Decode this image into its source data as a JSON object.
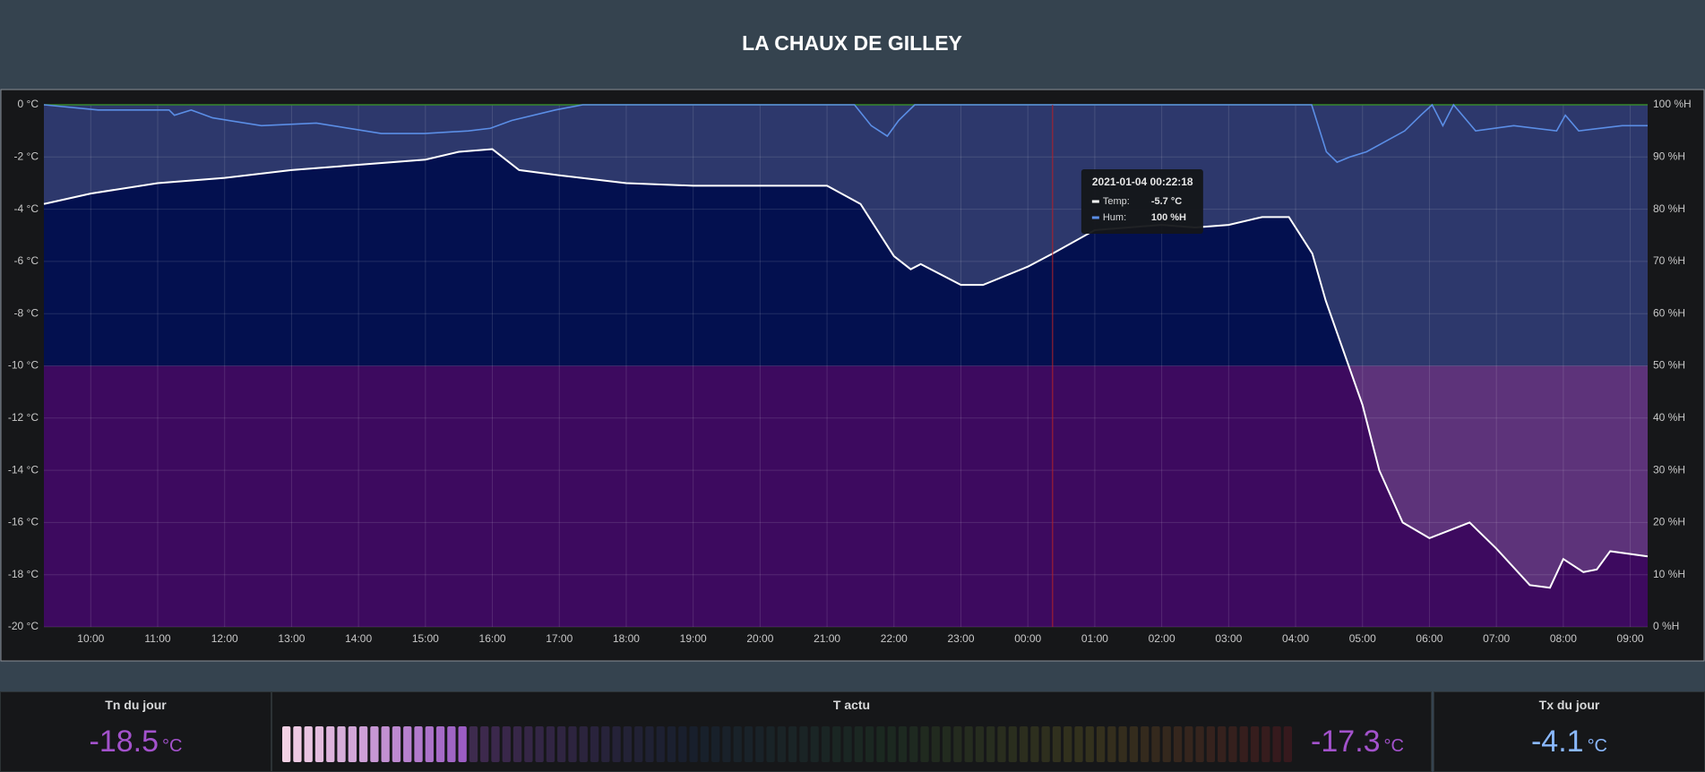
{
  "header": {
    "title": "LA CHAUX DE GILLEY"
  },
  "chart_data": {
    "type": "line",
    "xlim": [
      9.3,
      33.26
    ],
    "xticks": [
      {
        "value": 10,
        "label": "10:00"
      },
      {
        "value": 11,
        "label": "11:00"
      },
      {
        "value": 12,
        "label": "12:00"
      },
      {
        "value": 13,
        "label": "13:00"
      },
      {
        "value": 14,
        "label": "14:00"
      },
      {
        "value": 15,
        "label": "15:00"
      },
      {
        "value": 16,
        "label": "16:00"
      },
      {
        "value": 17,
        "label": "17:00"
      },
      {
        "value": 18,
        "label": "18:00"
      },
      {
        "value": 19,
        "label": "19:00"
      },
      {
        "value": 20,
        "label": "20:00"
      },
      {
        "value": 21,
        "label": "21:00"
      },
      {
        "value": 22,
        "label": "22:00"
      },
      {
        "value": 23,
        "label": "23:00"
      },
      {
        "value": 24,
        "label": "00:00"
      },
      {
        "value": 25,
        "label": "01:00"
      },
      {
        "value": 26,
        "label": "02:00"
      },
      {
        "value": 27,
        "label": "03:00"
      },
      {
        "value": 28,
        "label": "04:00"
      },
      {
        "value": 29,
        "label": "05:00"
      },
      {
        "value": 30,
        "label": "06:00"
      },
      {
        "value": 31,
        "label": "07:00"
      },
      {
        "value": 32,
        "label": "08:00"
      },
      {
        "value": 33,
        "label": "09:00"
      }
    ],
    "ylim": [
      -20,
      0
    ],
    "yticks": [
      {
        "value": 0,
        "label": "0 °C"
      },
      {
        "value": -2,
        "label": "-2 °C"
      },
      {
        "value": -4,
        "label": "-4 °C"
      },
      {
        "value": -6,
        "label": "-6 °C"
      },
      {
        "value": -8,
        "label": "-8 °C"
      },
      {
        "value": -10,
        "label": "-10 °C"
      },
      {
        "value": -12,
        "label": "-12 °C"
      },
      {
        "value": -14,
        "label": "-14 °C"
      },
      {
        "value": -16,
        "label": "-16 °C"
      },
      {
        "value": -18,
        "label": "-18 °C"
      },
      {
        "value": -20,
        "label": "-20 °C"
      }
    ],
    "y2lim": [
      0,
      100
    ],
    "y2ticks": [
      {
        "value": 100,
        "label": "100 %H"
      },
      {
        "value": 90,
        "label": "90 %H"
      },
      {
        "value": 80,
        "label": "80 %H"
      },
      {
        "value": 70,
        "label": "70 %H"
      },
      {
        "value": 60,
        "label": "60 %H"
      },
      {
        "value": 50,
        "label": "50 %H"
      },
      {
        "value": 40,
        "label": "40 %H"
      },
      {
        "value": 30,
        "label": "30 %H"
      },
      {
        "value": 20,
        "label": "20 %H"
      },
      {
        "value": 10,
        "label": "10 %H"
      },
      {
        "value": 0,
        "label": "0 %H"
      }
    ],
    "grid": true,
    "bands": [
      {
        "from": 0,
        "to": -10,
        "color": "#03104f"
      },
      {
        "from": -10,
        "to": -20,
        "color": "#3d0a5f"
      }
    ],
    "series": [
      {
        "color": "#ffffff",
        "x": [
          9.3,
          10,
          11,
          12,
          13,
          14,
          14.5,
          15,
          15.5,
          16,
          16.4,
          17,
          18,
          19,
          20,
          21,
          21.5,
          22,
          22.25,
          22.4,
          23,
          23.33,
          24,
          24.37,
          25,
          26,
          26.5,
          27,
          27.5,
          27.9,
          28.25,
          28.45,
          29,
          29.25,
          29.6,
          30,
          30.3,
          30.6,
          31,
          31.5,
          31.8,
          32,
          32.3,
          32.5,
          32.7,
          33.26
        ],
        "values": [
          -3.8,
          -3.4,
          -3.0,
          -2.8,
          -2.5,
          -2.3,
          -2.2,
          -2.1,
          -1.8,
          -1.7,
          -2.5,
          -2.7,
          -3.0,
          -3.1,
          -3.1,
          -3.1,
          -3.8,
          -5.8,
          -6.3,
          -6.1,
          -6.9,
          -6.9,
          -6.2,
          -5.7,
          -4.8,
          -4.6,
          -4.7,
          -4.6,
          -4.3,
          -4.3,
          -5.7,
          -7.5,
          -11.5,
          -14.0,
          -16.0,
          -16.6,
          -16.3,
          -16.0,
          -17.0,
          -18.4,
          -18.5,
          -17.4,
          -17.9,
          -17.8,
          -17.1,
          -17.3
        ]
      },
      {
        "color": "#5b8ee6",
        "axis": "y2",
        "x": [
          9.3,
          10.11,
          11.17,
          11.25,
          11.5,
          11.82,
          12.55,
          13.37,
          14.34,
          14.99,
          15.64,
          15.97,
          16.29,
          16.94,
          17.35,
          21.41,
          21.66,
          21.9,
          22.07,
          22.31,
          28.24,
          28.46,
          28.62,
          28.81,
          29.06,
          29.63,
          29.87,
          30.04,
          30.2,
          30.36,
          30.69,
          31.26,
          31.9,
          32.03,
          32.23,
          32.88,
          33.26
        ],
        "values": [
          100,
          99,
          99,
          98,
          99,
          97.5,
          96,
          96.5,
          94.5,
          94.5,
          95,
          95.5,
          97,
          99,
          100,
          100,
          96,
          94,
          97,
          100,
          100,
          91,
          89,
          90,
          91,
          95,
          98,
          100,
          96,
          100,
          95,
          96,
          95,
          98,
          95,
          96,
          96
        ]
      }
    ],
    "cursor_x": 24.37,
    "tooltip": {
      "time": "2021-01-04 00:22:18",
      "rows": [
        {
          "label": "Temp:",
          "value": "-5.7 °C"
        },
        {
          "label": "Hum:",
          "value": "100 %H"
        }
      ]
    }
  },
  "stats": [
    {
      "title": "Tn du jour",
      "value": -18.5,
      "unit": "°C",
      "color": "#a352cc"
    },
    {
      "title": "T actu",
      "value": -17.3,
      "unit": "°C",
      "color": "#a352cc",
      "gauge": {
        "min": -20,
        "max": -5
      }
    },
    {
      "title": "Tx du jour",
      "value": -4.1,
      "unit": "°C",
      "color": "#8ab8ff"
    }
  ]
}
